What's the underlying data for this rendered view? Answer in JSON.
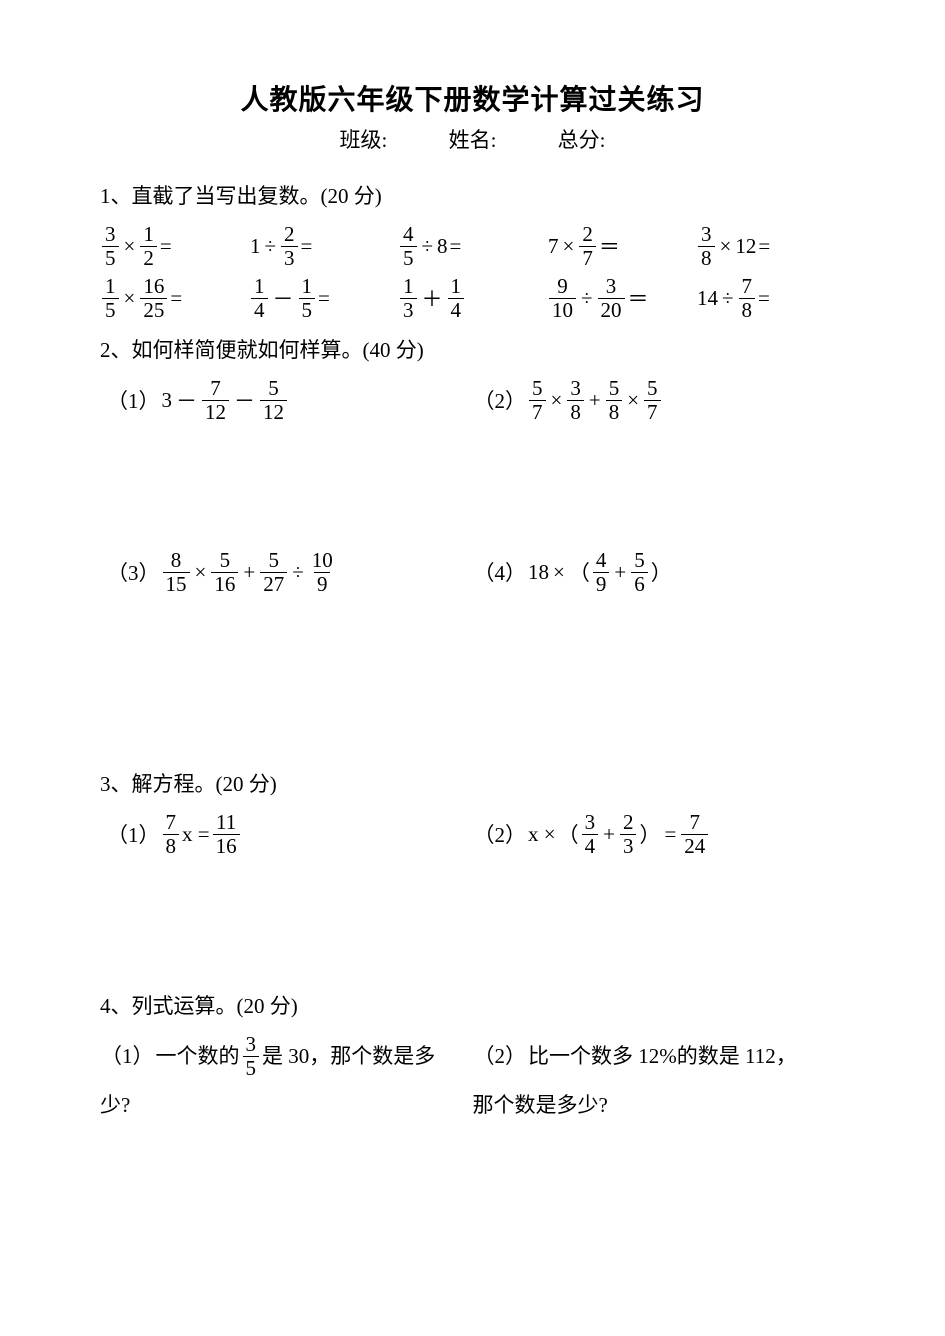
{
  "title": "人教版六年级下册数学计算过关练习",
  "info": {
    "class_label": "班级:",
    "name_label": "姓名:",
    "score_label": "总分:"
  },
  "s1": {
    "head": "1、直截了当写出复数。(20 分)",
    "r1": {
      "c1": {
        "f1n": "3",
        "f1d": "5",
        "op": "×",
        "f2n": "1",
        "f2d": "2",
        "tail": "="
      },
      "c2": {
        "a": "1",
        "op": "÷",
        "f1n": "2",
        "f1d": "3",
        "tail": "="
      },
      "c3": {
        "f1n": "4",
        "f1d": "5",
        "op": "÷",
        "b": "8",
        "tail": "="
      },
      "c4": {
        "a": "7",
        "op": "×",
        "f1n": "2",
        "f1d": "7",
        "tail": "＝"
      },
      "c5": {
        "f1n": "3",
        "f1d": "8",
        "op": "×",
        "b": "12",
        "tail": "="
      }
    },
    "r2": {
      "c1": {
        "f1n": "1",
        "f1d": "5",
        "op": "×",
        "f2n": "16",
        "f2d": "25",
        "tail": "="
      },
      "c2": {
        "f1n": "1",
        "f1d": "4",
        "op": "－",
        "f2n": "1",
        "f2d": "5",
        "tail": "="
      },
      "c3": {
        "f1n": "1",
        "f1d": "3",
        "op": "＋",
        "f2n": "1",
        "f2d": "4",
        "tail": ""
      },
      "c4": {
        "f1n": "9",
        "f1d": "10",
        "op": "÷",
        "f2n": "3",
        "f2d": "20",
        "tail": "＝"
      },
      "c5": {
        "a": "14",
        "op": "÷",
        "f1n": "7",
        "f1d": "8",
        "tail": "="
      }
    }
  },
  "s2": {
    "head": "2、如何样简便就如何样算。(40 分)",
    "q1": {
      "label": "（1）",
      "a": "3",
      "op1": "－",
      "f1n": "7",
      "f1d": "12",
      "op2": "－",
      "f2n": "5",
      "f2d": "12"
    },
    "q2": {
      "label": "（2）",
      "f1n": "5",
      "f1d": "7",
      "op1": "×",
      "f2n": "3",
      "f2d": "8",
      "op2": "+",
      "f3n": "5",
      "f3d": "8",
      "op3": "×",
      "f4n": "5",
      "f4d": "7"
    },
    "q3": {
      "label": "（3）",
      "f1n": "8",
      "f1d": "15",
      "op1": "×",
      "f2n": "5",
      "f2d": "16",
      "op2": "+",
      "f3n": "5",
      "f3d": "27",
      "op3": "÷",
      "f4n": "10",
      "f4d": "9"
    },
    "q4": {
      "label": "（4）",
      "a": "18",
      "op1": "×",
      "lp": "（",
      "f1n": "4",
      "f1d": "9",
      "op2": "+",
      "f2n": "5",
      "f2d": "6",
      "rp": "）"
    }
  },
  "s3": {
    "head": "3、解方程。(20 分)",
    "q1": {
      "label": "（1）",
      "f1n": "7",
      "f1d": "8",
      "mid": " x =",
      "f2n": "11",
      "f2d": "16"
    },
    "q2": {
      "label": "（2）",
      "pre": "x ×",
      "lp": "（",
      "f1n": "3",
      "f1d": "4",
      "op": "+",
      "f2n": "2",
      "f2d": "3",
      "rp": "）",
      "eq": "=",
      "f3n": "7",
      "f3d": "24"
    }
  },
  "s4": {
    "head": "4、列式运算。(20 分)",
    "q1": {
      "label": "（1）",
      "pre": "一个数的",
      "fn": "3",
      "fd": "5",
      "post": "是 30，那个数是多",
      "line2": "少?"
    },
    "q2": {
      "label": "（2）",
      "line1": "比一个数多 12%的数是 112，",
      "line2": "那个数是多少?"
    }
  }
}
